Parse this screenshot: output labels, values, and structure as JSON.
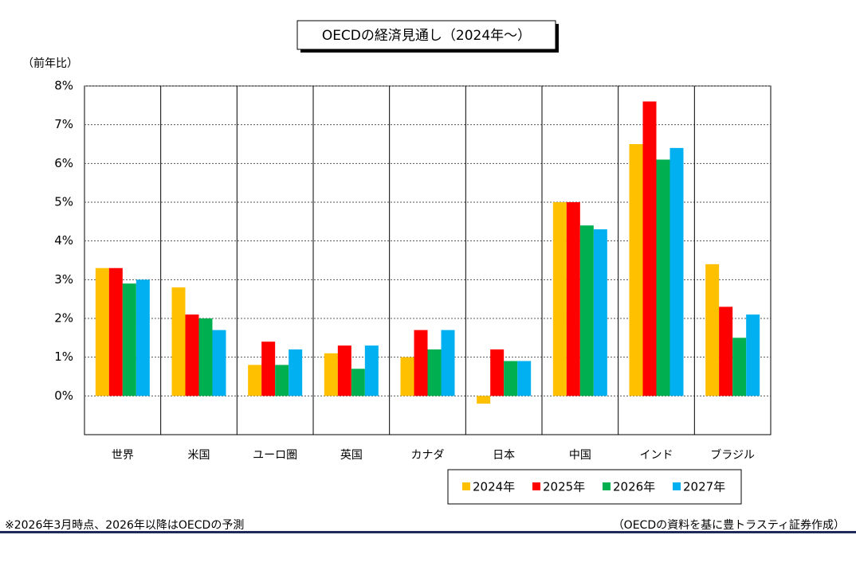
{
  "chart_data": {
    "type": "bar",
    "title": "OECDの経済見通し（2024年～）",
    "y_unit": "（前年比）",
    "categories": [
      "世界",
      "米国",
      "ユーロ圏",
      "英国",
      "カナダ",
      "日本",
      "中国",
      "インド",
      "ブラジル"
    ],
    "series": [
      {
        "name": "2024年",
        "color": "#ffc000",
        "values": [
          3.3,
          2.8,
          0.8,
          1.1,
          1.0,
          -0.2,
          5.0,
          6.5,
          3.4
        ]
      },
      {
        "name": "2025年",
        "color": "#ff0000",
        "values": [
          3.3,
          2.1,
          1.4,
          1.3,
          1.7,
          1.2,
          5.0,
          7.6,
          2.3
        ]
      },
      {
        "name": "2026年",
        "color": "#00b050",
        "values": [
          2.9,
          2.0,
          0.8,
          0.7,
          1.2,
          0.9,
          4.4,
          6.1,
          1.5
        ]
      },
      {
        "name": "2027年",
        "color": "#00b0f0",
        "values": [
          3.0,
          1.7,
          1.2,
          1.3,
          1.7,
          0.9,
          4.3,
          6.4,
          2.1
        ]
      }
    ],
    "ylim": [
      -1,
      8
    ],
    "yticks": [
      {
        "value": 0,
        "label": "0%"
      },
      {
        "value": 1,
        "label": "1%"
      },
      {
        "value": 2,
        "label": "2%"
      },
      {
        "value": 3,
        "label": "3%"
      },
      {
        "value": 4,
        "label": "4%"
      },
      {
        "value": 5,
        "label": "5%"
      },
      {
        "value": 6,
        "label": "6%"
      },
      {
        "value": 7,
        "label": "7%"
      },
      {
        "value": 8,
        "label": "8%"
      }
    ],
    "grid": true,
    "footnote": "※2026年3月時点、2026年以降はOECDの予測",
    "source": "（OECDの資料を基に豊トラスティ証券作成）"
  }
}
